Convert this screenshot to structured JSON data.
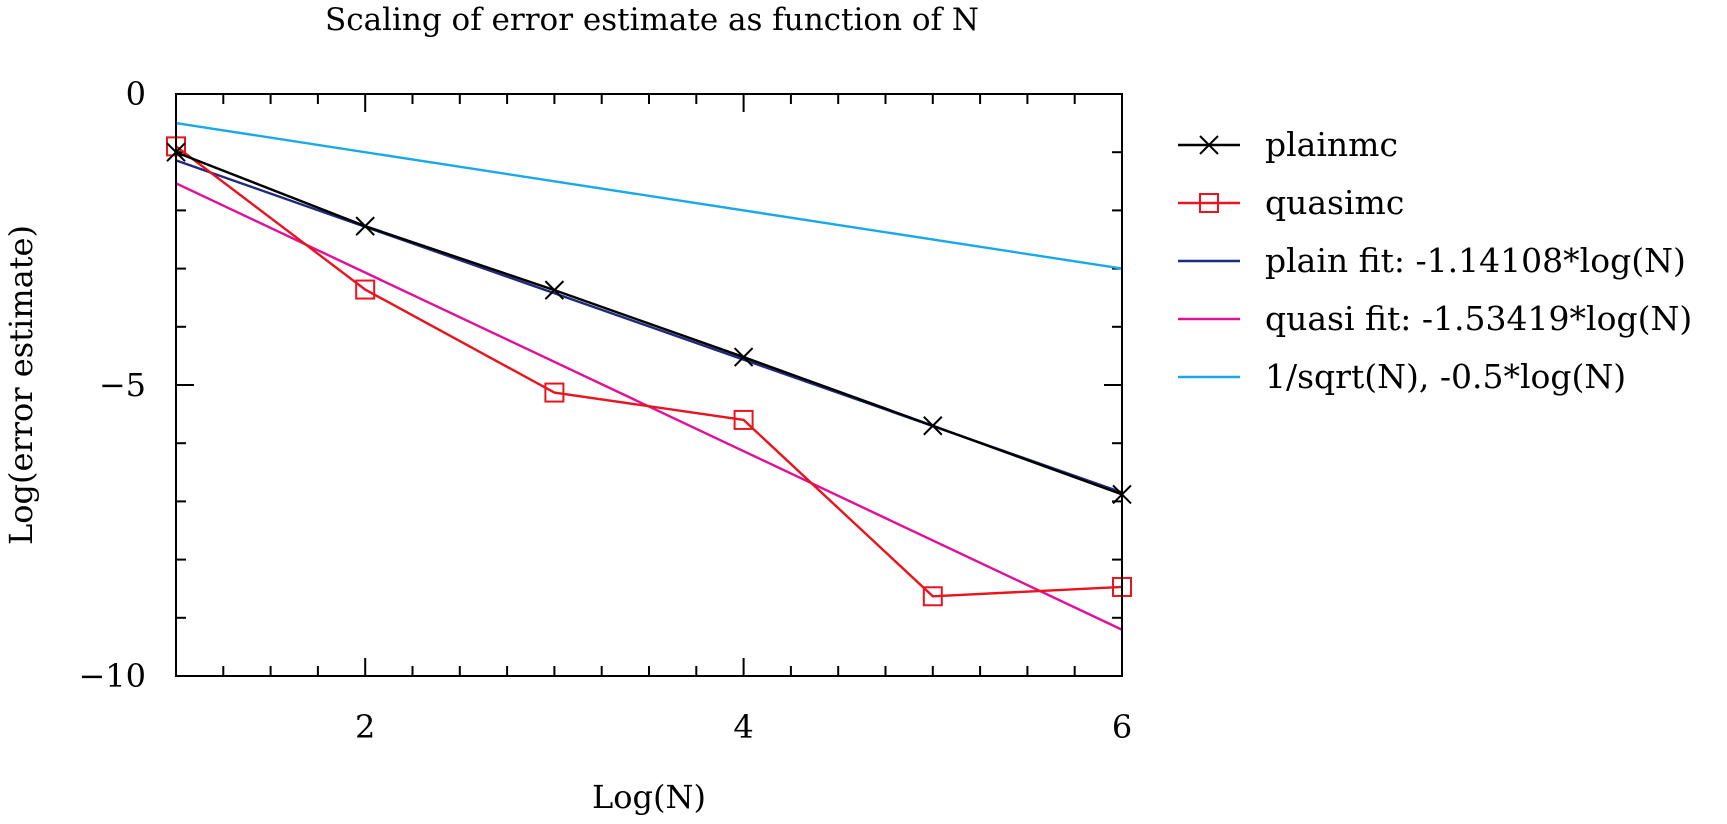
{
  "chart_data": {
    "type": "line",
    "title": "Scaling of error estimate as function of N",
    "xlabel": "Log(N)",
    "ylabel": "Log(error estimate)",
    "xlim": [
      1,
      6
    ],
    "ylim": [
      -10,
      0
    ],
    "x_ticks": [
      2,
      4,
      6
    ],
    "x_tick_labels": [
      "2",
      "4",
      "6"
    ],
    "y_ticks": [
      0,
      -5,
      -10
    ],
    "y_tick_labels": [
      "0",
      "−5",
      "−10"
    ],
    "x_minor_step": 0.25,
    "y_minor_step": 1,
    "grid": false,
    "legend_position": "right",
    "series": [
      {
        "name": "plainmc",
        "style": "line+x",
        "color": "#000000",
        "x": [
          1,
          2,
          3,
          4,
          5,
          6
        ],
        "y": [
          -1.0,
          -2.27,
          -3.37,
          -4.52,
          -5.7,
          -6.88
        ]
      },
      {
        "name": "quasimc",
        "style": "line+square",
        "color": "#e8141e",
        "x": [
          1,
          2,
          3,
          4,
          5,
          6
        ],
        "y": [
          -0.9,
          -3.36,
          -5.13,
          -5.6,
          -8.63,
          -8.47
        ]
      },
      {
        "name": "plain fit: -1.14108*log(N)",
        "style": "line",
        "color": "#1f2a7a",
        "x": [
          1,
          6
        ],
        "y": [
          -1.14108,
          -6.84648
        ]
      },
      {
        "name": "quasi fit: -1.53419*log(N)",
        "style": "line",
        "color": "#e0109a",
        "x": [
          1,
          6
        ],
        "y": [
          -1.53419,
          -9.20514
        ]
      },
      {
        "name": "1/sqrt(N), -0.5*log(N)",
        "style": "line",
        "color": "#1aa9e6",
        "x": [
          1,
          6
        ],
        "y": [
          -0.5,
          -3.0
        ]
      }
    ]
  }
}
